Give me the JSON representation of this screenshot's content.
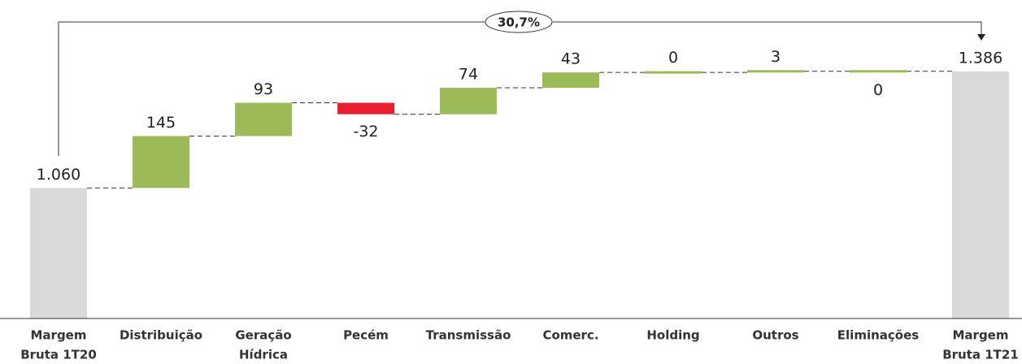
{
  "chart_data": {
    "type": "waterfall",
    "categories": [
      [
        "Margem",
        "Bruta 1T20"
      ],
      [
        "Distribuição"
      ],
      [
        "Geração",
        "Hídrica"
      ],
      [
        "Pecém"
      ],
      [
        "Transmissão"
      ],
      [
        "Comerc."
      ],
      [
        "Holding"
      ],
      [
        "Outros"
      ],
      [
        "Eliminações"
      ],
      [
        "Margem",
        "Bruta 1T21"
      ]
    ],
    "values": [
      1060,
      145,
      93,
      -32,
      74,
      43,
      0,
      3,
      0,
      1386
    ],
    "value_labels": [
      "1.060",
      "145",
      "93",
      "-32",
      "74",
      "43",
      "0",
      "3",
      "0",
      "1.386"
    ],
    "measure": [
      "total",
      "relative",
      "relative",
      "relative",
      "relative",
      "relative",
      "relative",
      "relative",
      "relative",
      "total"
    ],
    "label_position": [
      "above",
      "above",
      "above",
      "below",
      "above",
      "above",
      "above",
      "above",
      "below",
      "above"
    ],
    "colors": {
      "total": "#d9d9d9",
      "increase": "#9bbb59",
      "decrease": "#e8202f"
    },
    "ylim": [
      695,
      1540
    ],
    "annotation": "30,7%"
  }
}
